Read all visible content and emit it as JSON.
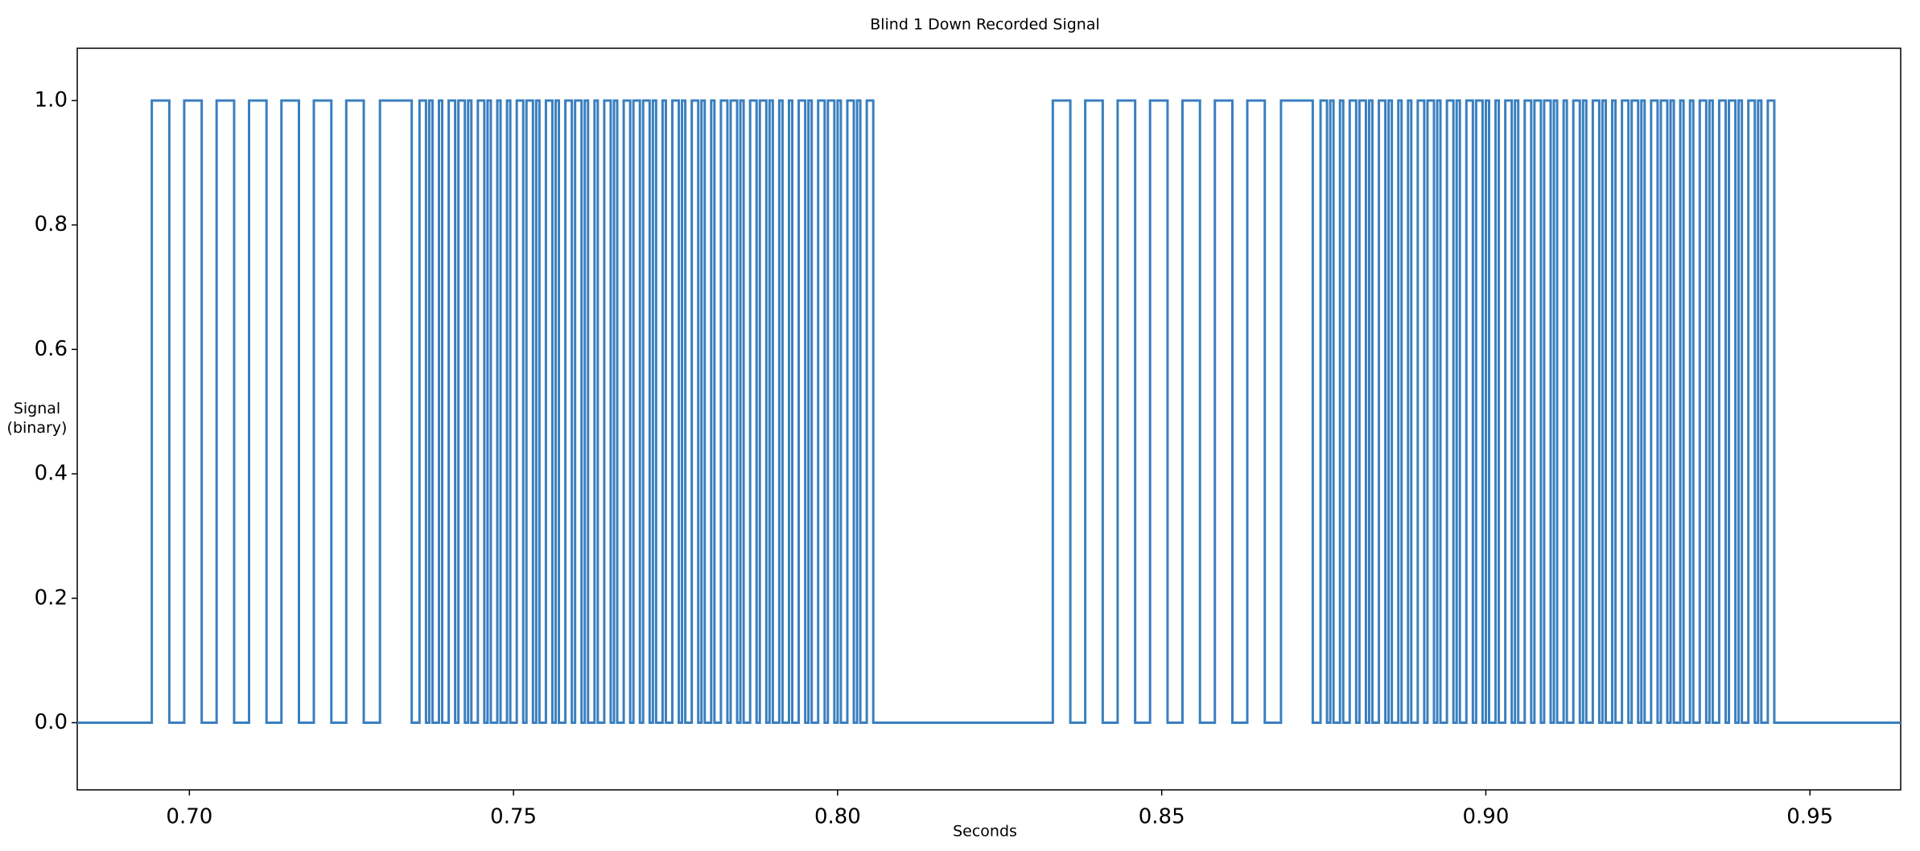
{
  "chart_data": {
    "type": "line",
    "title": "Blind 1 Down Recorded Signal",
    "xlabel": "Seconds",
    "ylabel": "Signal\n(binary)",
    "color": "#3a7fbf",
    "xlim": [
      0.6827,
      0.964
    ],
    "ylim": [
      -0.108,
      1.084
    ],
    "xticks": [
      {
        "value": 0.7,
        "label": "0.70"
      },
      {
        "value": 0.75,
        "label": "0.75"
      },
      {
        "value": 0.8,
        "label": "0.80"
      },
      {
        "value": 0.85,
        "label": "0.85"
      },
      {
        "value": 0.9,
        "label": "0.90"
      },
      {
        "value": 0.95,
        "label": "0.95"
      }
    ],
    "yticks": [
      {
        "value": 0,
        "label": "0.0"
      },
      {
        "value": 0.2,
        "label": "0.2"
      },
      {
        "value": 0.4,
        "label": "0.4"
      },
      {
        "value": 0.6,
        "label": "0.6"
      },
      {
        "value": 0.8,
        "label": "0.8"
      },
      {
        "value": 1,
        "label": "1.0"
      }
    ],
    "x": [
      0.6827,
      0.6942,
      0.6942,
      0.6969,
      0.6969,
      0.6992,
      0.6992,
      0.7019,
      0.7019,
      0.7042,
      0.7042,
      0.7069,
      0.7069,
      0.7092,
      0.7092,
      0.7119,
      0.7119,
      0.7142,
      0.7142,
      0.7169,
      0.7169,
      0.7192,
      0.7192,
      0.7219,
      0.7219,
      0.7242,
      0.7242,
      0.7269,
      0.7269,
      0.7294,
      0.7294,
      0.7343,
      0.7343,
      0.7355,
      0.7355,
      0.7365,
      0.7365,
      0.737,
      0.737,
      0.7375,
      0.7375,
      0.7385,
      0.7385,
      0.739,
      0.739,
      0.74,
      0.74,
      0.741,
      0.741,
      0.7415,
      0.7415,
      0.7425,
      0.7425,
      0.743,
      0.743,
      0.7435,
      0.7435,
      0.7445,
      0.7445,
      0.7455,
      0.7455,
      0.746,
      0.746,
      0.7465,
      0.7465,
      0.7475,
      0.7475,
      0.748,
      0.748,
      0.749,
      0.749,
      0.7495,
      0.7495,
      0.7505,
      0.7505,
      0.7515,
      0.7515,
      0.752,
      0.752,
      0.753,
      0.753,
      0.7535,
      0.7535,
      0.754,
      0.754,
      0.755,
      0.755,
      0.756,
      0.756,
      0.7565,
      0.7565,
      0.757,
      0.757,
      0.758,
      0.758,
      0.759,
      0.759,
      0.7595,
      0.7595,
      0.7605,
      0.7605,
      0.761,
      0.761,
      0.7615,
      0.7615,
      0.7625,
      0.7625,
      0.763,
      0.763,
      0.764,
      0.764,
      0.765,
      0.765,
      0.7655,
      0.7655,
      0.766,
      0.766,
      0.767,
      0.767,
      0.768,
      0.768,
      0.7685,
      0.7685,
      0.7695,
      0.7695,
      0.77,
      0.77,
      0.771,
      0.771,
      0.7715,
      0.7715,
      0.772,
      0.772,
      0.773,
      0.773,
      0.7735,
      0.7735,
      0.7745,
      0.7745,
      0.7755,
      0.7755,
      0.776,
      0.776,
      0.7765,
      0.7765,
      0.7775,
      0.7775,
      0.7785,
      0.7785,
      0.779,
      0.779,
      0.7795,
      0.7795,
      0.7805,
      0.7805,
      0.781,
      0.781,
      0.782,
      0.782,
      0.783,
      0.783,
      0.7835,
      0.7835,
      0.7845,
      0.7845,
      0.785,
      0.785,
      0.7855,
      0.7855,
      0.7865,
      0.7865,
      0.7875,
      0.7875,
      0.788,
      0.788,
      0.789,
      0.789,
      0.7895,
      0.7895,
      0.79,
      0.79,
      0.791,
      0.791,
      0.7915,
      0.7915,
      0.7925,
      0.7925,
      0.793,
      0.793,
      0.794,
      0.794,
      0.795,
      0.795,
      0.7955,
      0.7955,
      0.796,
      0.796,
      0.797,
      0.797,
      0.798,
      0.798,
      0.7985,
      0.7985,
      0.7995,
      0.7995,
      0.8,
      0.8,
      0.8005,
      0.8005,
      0.8015,
      0.8015,
      0.8025,
      0.8025,
      0.803,
      0.803,
      0.8035,
      0.8035,
      0.8045,
      0.8045,
      0.8055,
      0.8055,
      0.8332,
      0.8332,
      0.8359,
      0.8359,
      0.8382,
      0.8382,
      0.8409,
      0.8409,
      0.8432,
      0.8432,
      0.8459,
      0.8459,
      0.8482,
      0.8482,
      0.8509,
      0.8509,
      0.8532,
      0.8532,
      0.8559,
      0.8559,
      0.8582,
      0.8582,
      0.8609,
      0.8609,
      0.8632,
      0.8632,
      0.8659,
      0.8659,
      0.8684,
      0.8684,
      0.8733,
      0.8733,
      0.8745,
      0.8745,
      0.8755,
      0.8755,
      0.876,
      0.876,
      0.8765,
      0.8765,
      0.8775,
      0.8775,
      0.878,
      0.878,
      0.879,
      0.879,
      0.88,
      0.88,
      0.8805,
      0.8805,
      0.8815,
      0.8815,
      0.882,
      0.882,
      0.8825,
      0.8825,
      0.8835,
      0.8835,
      0.8845,
      0.8845,
      0.885,
      0.885,
      0.8855,
      0.8855,
      0.8865,
      0.8865,
      0.887,
      0.887,
      0.888,
      0.888,
      0.8885,
      0.8885,
      0.8895,
      0.8895,
      0.8905,
      0.8905,
      0.891,
      0.891,
      0.892,
      0.892,
      0.8925,
      0.8925,
      0.893,
      0.893,
      0.894,
      0.894,
      0.895,
      0.895,
      0.8955,
      0.8955,
      0.896,
      0.896,
      0.897,
      0.897,
      0.898,
      0.898,
      0.8985,
      0.8985,
      0.8995,
      0.8995,
      0.9,
      0.9,
      0.9005,
      0.9005,
      0.9015,
      0.9015,
      0.902,
      0.902,
      0.903,
      0.903,
      0.904,
      0.904,
      0.9045,
      0.9045,
      0.905,
      0.905,
      0.906,
      0.906,
      0.907,
      0.907,
      0.9075,
      0.9075,
      0.9085,
      0.9085,
      0.909,
      0.909,
      0.91,
      0.91,
      0.9105,
      0.9105,
      0.911,
      0.911,
      0.912,
      0.912,
      0.9125,
      0.9125,
      0.9135,
      0.9135,
      0.9145,
      0.9145,
      0.915,
      0.915,
      0.9155,
      0.9155,
      0.9165,
      0.9165,
      0.9175,
      0.9175,
      0.918,
      0.918,
      0.9185,
      0.9185,
      0.9195,
      0.9195,
      0.92,
      0.92,
      0.921,
      0.921,
      0.922,
      0.922,
      0.9225,
      0.9225,
      0.9235,
      0.9235,
      0.924,
      0.924,
      0.9245,
      0.9245,
      0.9255,
      0.9255,
      0.9265,
      0.9265,
      0.927,
      0.927,
      0.928,
      0.928,
      0.9285,
      0.9285,
      0.929,
      0.929,
      0.93,
      0.93,
      0.9305,
      0.9305,
      0.9315,
      0.9315,
      0.932,
      0.932,
      0.933,
      0.933,
      0.934,
      0.934,
      0.9345,
      0.9345,
      0.935,
      0.935,
      0.936,
      0.936,
      0.937,
      0.937,
      0.9375,
      0.9375,
      0.9385,
      0.9385,
      0.939,
      0.939,
      0.9395,
      0.9395,
      0.9405,
      0.9405,
      0.9415,
      0.9415,
      0.942,
      0.942,
      0.9425,
      0.9425,
      0.9435,
      0.9435,
      0.9445,
      0.9445,
      0.964
    ],
    "values": [
      0,
      0,
      1,
      1,
      0,
      0,
      1,
      1,
      0,
      0,
      1,
      1,
      0,
      0,
      1,
      1,
      0,
      0,
      1,
      1,
      0,
      0,
      1,
      1,
      0,
      0,
      1,
      1,
      0,
      0,
      1,
      1,
      0,
      0,
      1,
      1,
      0,
      0,
      1,
      1,
      0,
      0,
      1,
      1,
      0,
      0,
      1,
      1,
      0,
      0,
      1,
      1,
      0,
      0,
      1,
      1,
      0,
      0,
      1,
      1,
      0,
      0,
      1,
      1,
      0,
      0,
      1,
      1,
      0,
      0,
      1,
      1,
      0,
      0,
      1,
      1,
      0,
      0,
      1,
      1,
      0,
      0,
      1,
      1,
      0,
      0,
      1,
      1,
      0,
      0,
      1,
      1,
      0,
      0,
      1,
      1,
      0,
      0,
      1,
      1,
      0,
      0,
      1,
      1,
      0,
      0,
      1,
      1,
      0,
      0,
      1,
      1,
      0,
      0,
      1,
      1,
      0,
      0,
      1,
      1,
      0,
      0,
      1,
      1,
      0,
      0,
      1,
      1,
      0,
      0,
      1,
      1,
      0,
      0,
      1,
      1,
      0,
      0,
      1,
      1,
      0,
      0,
      1,
      1,
      0,
      0,
      1,
      1,
      0,
      0,
      1,
      1,
      0,
      0,
      1,
      1,
      0,
      0,
      1,
      1,
      0,
      0,
      1,
      1,
      0,
      0,
      1,
      1,
      0,
      0,
      1,
      1,
      0,
      0,
      1,
      1,
      0,
      0,
      1,
      1,
      0,
      0,
      1,
      1,
      0,
      0,
      1,
      1,
      0,
      0,
      1,
      1,
      0,
      0,
      1,
      1,
      0,
      0,
      1,
      1,
      0,
      0,
      1,
      1,
      0,
      0,
      1,
      1,
      0,
      0,
      1,
      1,
      0,
      0,
      1,
      1,
      0,
      0,
      1,
      1,
      0,
      0,
      1,
      1,
      0,
      0,
      1,
      1,
      0,
      0,
      1,
      1,
      0,
      0,
      1,
      1,
      0,
      0,
      1,
      1,
      0,
      0,
      1,
      1,
      0,
      0,
      1,
      1,
      0,
      0,
      1,
      1,
      0,
      0,
      1,
      1,
      0,
      0,
      1,
      1,
      0,
      0,
      1,
      1,
      0,
      0,
      1,
      1,
      0,
      0,
      1,
      1,
      0,
      0,
      1,
      1,
      0,
      0,
      1,
      1,
      0,
      0,
      1,
      1,
      0,
      0,
      1,
      1,
      0,
      0,
      1,
      1,
      0,
      0,
      1,
      1,
      0,
      0,
      1,
      1,
      0,
      0,
      1,
      1,
      0,
      0,
      1,
      1,
      0,
      0,
      1,
      1,
      0,
      0,
      1,
      1,
      0,
      0,
      1,
      1,
      0,
      0,
      1,
      1,
      0,
      0,
      1,
      1,
      0,
      0,
      1,
      1,
      0,
      0,
      1,
      1,
      0,
      0,
      1,
      1,
      0,
      0,
      1,
      1,
      0,
      0,
      1,
      1,
      0,
      0,
      1,
      1,
      0,
      0,
      1,
      1,
      0,
      0,
      1,
      1,
      0,
      0,
      1,
      1,
      0,
      0,
      1,
      1,
      0,
      0,
      1,
      1,
      0,
      0,
      1,
      1,
      0,
      0,
      1,
      1,
      0,
      0,
      1,
      1,
      0,
      0,
      1,
      1,
      0,
      0,
      1,
      1,
      0,
      0,
      1,
      1,
      0,
      0,
      1,
      1,
      0,
      0,
      1,
      1,
      0,
      0,
      1,
      1,
      0,
      0,
      1,
      1,
      0,
      0,
      1,
      1,
      0,
      0,
      1,
      1,
      0,
      0,
      1,
      1,
      0,
      0,
      1,
      1,
      0,
      0,
      1,
      1,
      0,
      0,
      1,
      1,
      0,
      0,
      1,
      1,
      0,
      0
    ]
  }
}
